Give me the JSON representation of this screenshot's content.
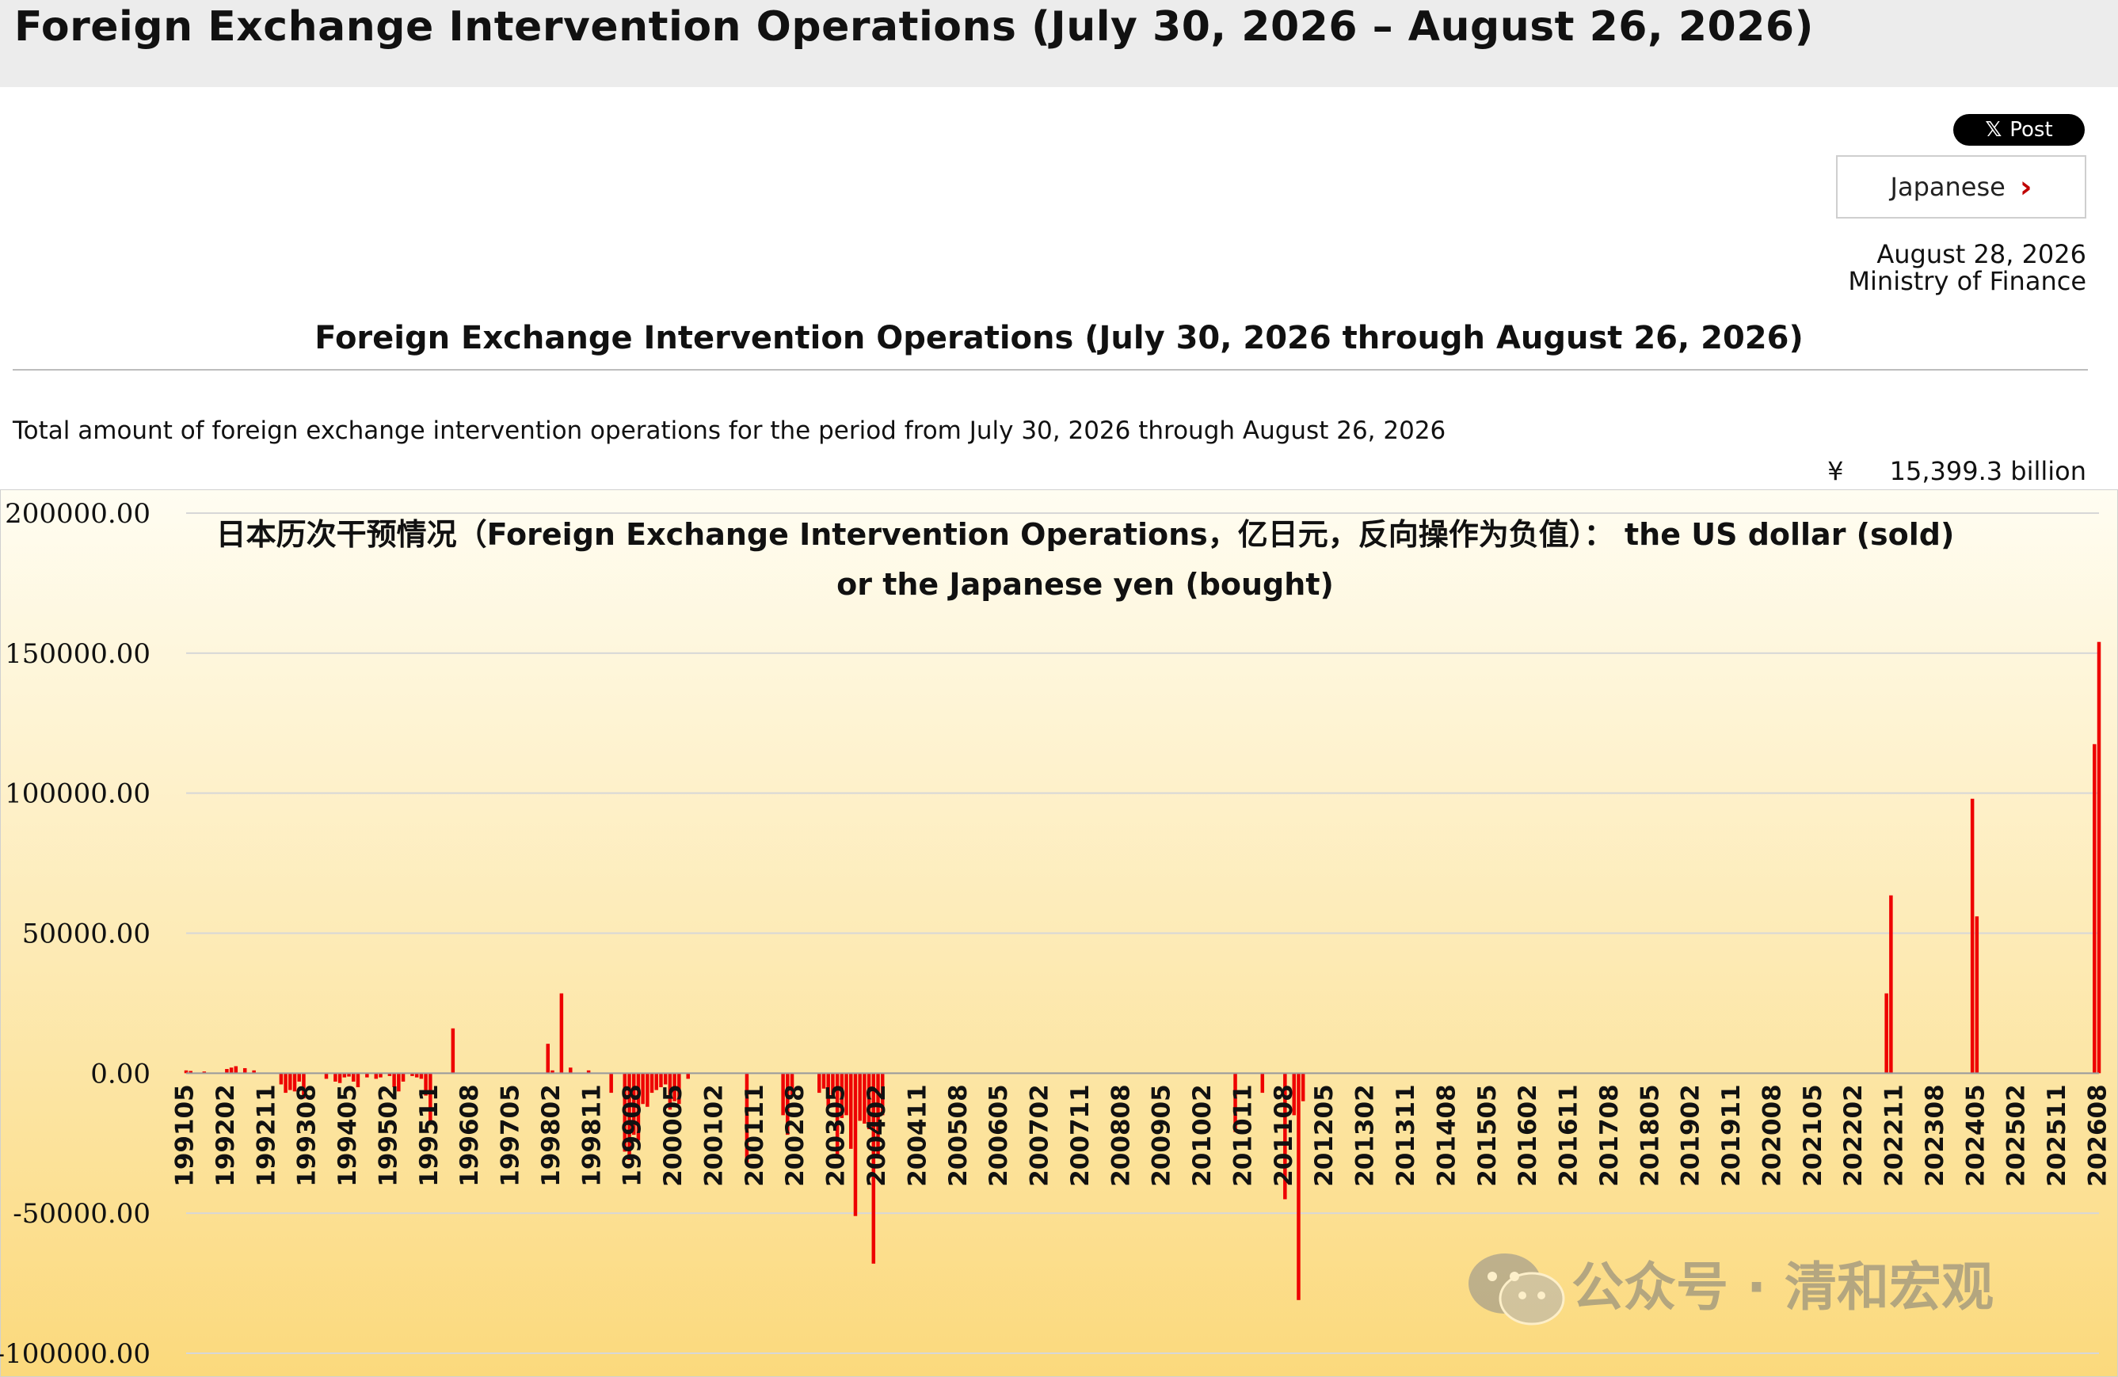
{
  "header": {
    "title": "Foreign Exchange Intervention Operations (July 30, 2026 – August 26, 2026)"
  },
  "share": {
    "post_label": "Post",
    "icon": "x-logo-icon"
  },
  "language": {
    "label": "Japanese",
    "icon": "chevron-right-icon"
  },
  "meta": {
    "date": "August 28, 2026",
    "organization": "Ministry of Finance"
  },
  "main": {
    "subtitle": "Foreign Exchange Intervention Operations (July 30, 2026 through August 26, 2026)",
    "total_description": "Total amount of foreign exchange intervention operations for the period from July 30, 2026 through August 26, 2026",
    "total_currency": "¥",
    "total_amount": "15,399.3 billion"
  },
  "watermark": {
    "text": "公众号 · 清和宏观",
    "icon": "wechat-icon"
  },
  "colors": {
    "bar": "#ee0000",
    "chart_bg_top": "#fffdf2",
    "chart_bg_bottom": "#fbd97c",
    "grid": "#d7d7d7"
  },
  "chart_data": {
    "type": "bar",
    "title_line1": "日本历次干预情况（Foreign Exchange Intervention Operations，亿日元，反向操作为负值）： the US dollar (sold)",
    "title_line2": "or the Japanese yen (bought)",
    "xlabel": "",
    "ylabel": "",
    "ylim": [
      -100000,
      200000
    ],
    "yticks": [
      "200000.00",
      "150000.00",
      "100000.00",
      "50000.00",
      "0.00",
      "-50000.00",
      "-100000.00"
    ],
    "ytick_values": [
      200000,
      150000,
      100000,
      50000,
      0,
      -50000,
      -100000
    ],
    "x_range": [
      "199105",
      "202608"
    ],
    "xticks": [
      "199105",
      "199202",
      "199211",
      "199308",
      "199405",
      "199502",
      "199511",
      "199608",
      "199705",
      "199802",
      "199811",
      "199908",
      "200005",
      "200102",
      "200111",
      "200208",
      "200305",
      "200402",
      "200411",
      "200508",
      "200605",
      "200702",
      "200711",
      "200808",
      "200905",
      "201002",
      "201011",
      "201108",
      "201205",
      "201302",
      "201311",
      "201408",
      "201505",
      "201602",
      "201611",
      "201708",
      "201805",
      "201902",
      "201911",
      "202008",
      "202105",
      "202202",
      "202211",
      "202308",
      "202405",
      "202502",
      "202511",
      "202608"
    ],
    "series": [
      {
        "bars": [
          {
            "x": "199105",
            "value": 1000
          },
          {
            "x": "199106",
            "value": 800
          },
          {
            "x": "199109",
            "value": 600
          },
          {
            "x": "199202",
            "value": 1500
          },
          {
            "x": "199203",
            "value": 2000
          },
          {
            "x": "199204",
            "value": 2500
          },
          {
            "x": "199206",
            "value": 1800
          },
          {
            "x": "199208",
            "value": 1000
          },
          {
            "x": "199302",
            "value": -4000
          },
          {
            "x": "199303",
            "value": -7000
          },
          {
            "x": "199304",
            "value": -6000
          },
          {
            "x": "199305",
            "value": -6500
          },
          {
            "x": "199306",
            "value": -3000
          },
          {
            "x": "199307",
            "value": -9000
          },
          {
            "x": "199312",
            "value": -2000
          },
          {
            "x": "199402",
            "value": -3000
          },
          {
            "x": "199403",
            "value": -3500
          },
          {
            "x": "199404",
            "value": -1500
          },
          {
            "x": "199405",
            "value": -1200
          },
          {
            "x": "199406",
            "value": -3000
          },
          {
            "x": "199407",
            "value": -5000
          },
          {
            "x": "199409",
            "value": -1500
          },
          {
            "x": "199411",
            "value": -2000
          },
          {
            "x": "199412",
            "value": -1500
          },
          {
            "x": "199502",
            "value": -1000
          },
          {
            "x": "199503",
            "value": -5000
          },
          {
            "x": "199504",
            "value": -6500
          },
          {
            "x": "199505",
            "value": -3000
          },
          {
            "x": "199507",
            "value": -1000
          },
          {
            "x": "199508",
            "value": -1500
          },
          {
            "x": "199509",
            "value": -2000
          },
          {
            "x": "199510",
            "value": -8000
          },
          {
            "x": "199511",
            "value": -17000
          },
          {
            "x": "199604",
            "value": 16000
          },
          {
            "x": "199801",
            "value": 10500
          },
          {
            "x": "199802",
            "value": 1000
          },
          {
            "x": "199804",
            "value": 28500
          },
          {
            "x": "199806",
            "value": 2000
          },
          {
            "x": "199810",
            "value": 1000
          },
          {
            "x": "199903",
            "value": -7000
          },
          {
            "x": "199906",
            "value": -28000
          },
          {
            "x": "199907",
            "value": -31000
          },
          {
            "x": "199908",
            "value": -22000
          },
          {
            "x": "199909",
            "value": -24000
          },
          {
            "x": "199910",
            "value": -11000
          },
          {
            "x": "199911",
            "value": -12000
          },
          {
            "x": "199912",
            "value": -7000
          },
          {
            "x": "200001",
            "value": -6000
          },
          {
            "x": "200002",
            "value": -5000
          },
          {
            "x": "200003",
            "value": -4000
          },
          {
            "x": "200004",
            "value": -13000
          },
          {
            "x": "200005",
            "value": -10000
          },
          {
            "x": "200006",
            "value": -11000
          },
          {
            "x": "200008",
            "value": -2000
          },
          {
            "x": "200109",
            "value": -32000
          },
          {
            "x": "200205",
            "value": -15000
          },
          {
            "x": "200206",
            "value": -22000
          },
          {
            "x": "200207",
            "value": -8000
          },
          {
            "x": "200301",
            "value": -7000
          },
          {
            "x": "200302",
            "value": -5500
          },
          {
            "x": "200303",
            "value": -12000
          },
          {
            "x": "200304",
            "value": -9000
          },
          {
            "x": "200305",
            "value": -30000
          },
          {
            "x": "200306",
            "value": -16000
          },
          {
            "x": "200307",
            "value": -15000
          },
          {
            "x": "200308",
            "value": -27000
          },
          {
            "x": "200309",
            "value": -51000
          },
          {
            "x": "200310",
            "value": -17000
          },
          {
            "x": "200311",
            "value": -18000
          },
          {
            "x": "200312",
            "value": -20000
          },
          {
            "x": "200401",
            "value": -68000
          },
          {
            "x": "200402",
            "value": -30000
          },
          {
            "x": "200403",
            "value": -15000
          },
          {
            "x": "201009",
            "value": -21000
          },
          {
            "x": "201103",
            "value": -7000
          },
          {
            "x": "201108",
            "value": -45000
          },
          {
            "x": "201110",
            "value": -15000
          },
          {
            "x": "201111",
            "value": -81000
          },
          {
            "x": "201112",
            "value": -10000
          },
          {
            "x": "202209",
            "value": 28500
          },
          {
            "x": "202210",
            "value": 63500
          },
          {
            "x": "202404",
            "value": 98000
          },
          {
            "x": "202405",
            "value": 56000
          },
          {
            "x": "202607",
            "value": 117500
          },
          {
            "x": "202608",
            "value": 154000
          }
        ]
      }
    ]
  }
}
